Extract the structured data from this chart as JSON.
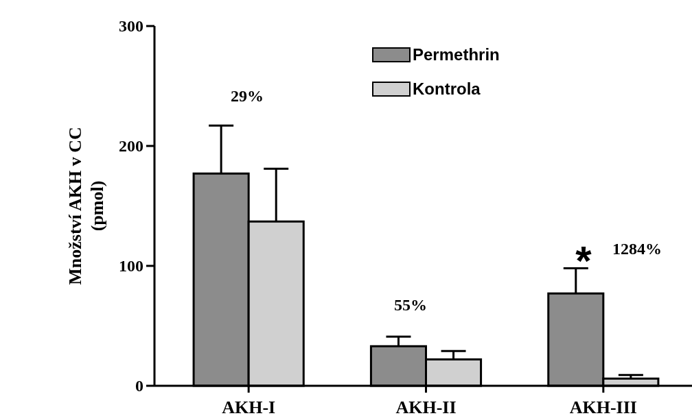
{
  "chart_data": {
    "type": "bar",
    "ylabel": "Množství AKH v CC\n(pmol)",
    "categories": [
      "AKH-I",
      "AKH-II",
      "AKH-III"
    ],
    "series": [
      {
        "name": "Permethrin",
        "color": "#8c8c8c",
        "values": [
          177,
          33,
          77
        ],
        "errors": [
          40,
          8,
          21
        ]
      },
      {
        "name": "Kontrola",
        "color": "#d0d0d0",
        "values": [
          137,
          22,
          6
        ],
        "errors": [
          44,
          7,
          3
        ]
      }
    ],
    "ylim": [
      0,
      300
    ],
    "yticks": [
      0,
      100,
      200,
      300
    ],
    "grid": false,
    "legend": "top right",
    "annotations": [
      "29%",
      "55%",
      "*",
      "1284%"
    ]
  }
}
